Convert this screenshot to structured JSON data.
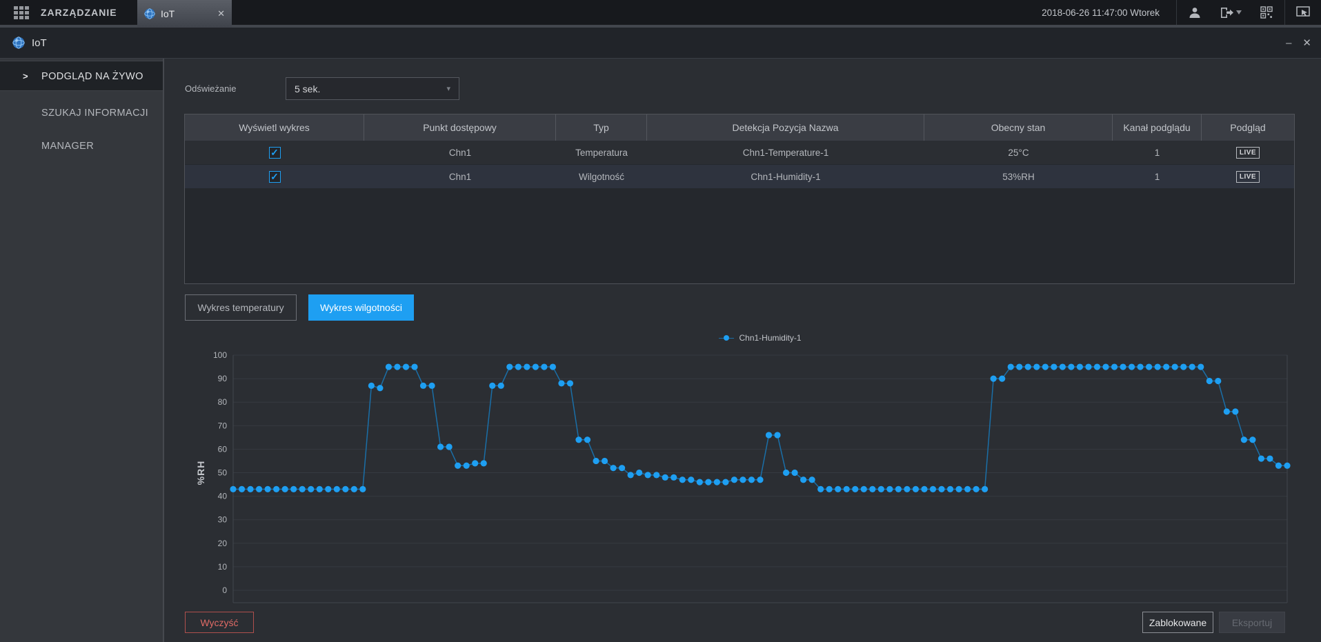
{
  "topbar": {
    "home_label": "ZARZĄDZANIE",
    "tab_label": "IoT",
    "datetime": "2018-06-26 11:47:00 Wtorek"
  },
  "window": {
    "title": "IoT"
  },
  "icons": {
    "close": "✕",
    "minimize": "–",
    "caret_down": "▾",
    "side_arrow": ">",
    "check": "✓"
  },
  "sidebar": {
    "items": [
      {
        "label": "PODGLĄD NA ŻYWO"
      },
      {
        "label": "SZUKAJ INFORMACJI"
      },
      {
        "label": "MANAGER"
      }
    ]
  },
  "refresh": {
    "label": "Odświeżanie",
    "value": "5 sek."
  },
  "table": {
    "columns": [
      "Wyświetl wykres",
      "Punkt dostępowy",
      "Typ",
      "Detekcja Pozycja Nazwa",
      "Obecny stan",
      "Kanał podglądu",
      "Podgląd"
    ],
    "rows": [
      {
        "access_point": "Chn1",
        "type": "Temperatura",
        "name": "Chn1-Temperature-1",
        "state": "25°C",
        "channel": "1",
        "preview": "LIVE"
      },
      {
        "access_point": "Chn1",
        "type": "Wilgotność",
        "name": "Chn1-Humidity-1",
        "state": "53%RH",
        "channel": "1",
        "preview": "LIVE"
      }
    ]
  },
  "chart_tabs": {
    "temperature": "Wykres temperatury",
    "humidity": "Wykres wilgotności"
  },
  "footer": {
    "clear": "Wyczyść",
    "locked": "Zablokowane",
    "export": "Eksportuj"
  },
  "colors": {
    "accent": "#1e9ff2",
    "danger": "#e06b66"
  },
  "chart_data": {
    "type": "line",
    "title": "",
    "xlabel": "",
    "ylabel": "%RH",
    "ylim": [
      0,
      100
    ],
    "yticks": [
      0,
      10,
      20,
      30,
      40,
      50,
      60,
      70,
      80,
      90,
      100
    ],
    "grid": true,
    "legend_position": "top-center",
    "point_color": "#1e9ff2",
    "line_color": "#1a6fa8",
    "series": [
      {
        "name": "Chn1-Humidity-1",
        "values": [
          43,
          43,
          43,
          43,
          43,
          43,
          43,
          43,
          43,
          43,
          43,
          43,
          43,
          43,
          43,
          43,
          87,
          86,
          95,
          95,
          95,
          95,
          87,
          87,
          61,
          61,
          53,
          53,
          54,
          54,
          87,
          87,
          95,
          95,
          95,
          95,
          95,
          95,
          88,
          88,
          64,
          64,
          55,
          55,
          52,
          52,
          49,
          50,
          49,
          49,
          48,
          48,
          47,
          47,
          46,
          46,
          46,
          46,
          47,
          47,
          47,
          47,
          66,
          66,
          50,
          50,
          47,
          47,
          43,
          43,
          43,
          43,
          43,
          43,
          43,
          43,
          43,
          43,
          43,
          43,
          43,
          43,
          43,
          43,
          43,
          43,
          43,
          43,
          90,
          90,
          95,
          95,
          95,
          95,
          95,
          95,
          95,
          95,
          95,
          95,
          95,
          95,
          95,
          95,
          95,
          95,
          95,
          95,
          95,
          95,
          95,
          95,
          95,
          89,
          89,
          76,
          76,
          64,
          64,
          56,
          56,
          53,
          53
        ]
      }
    ]
  }
}
